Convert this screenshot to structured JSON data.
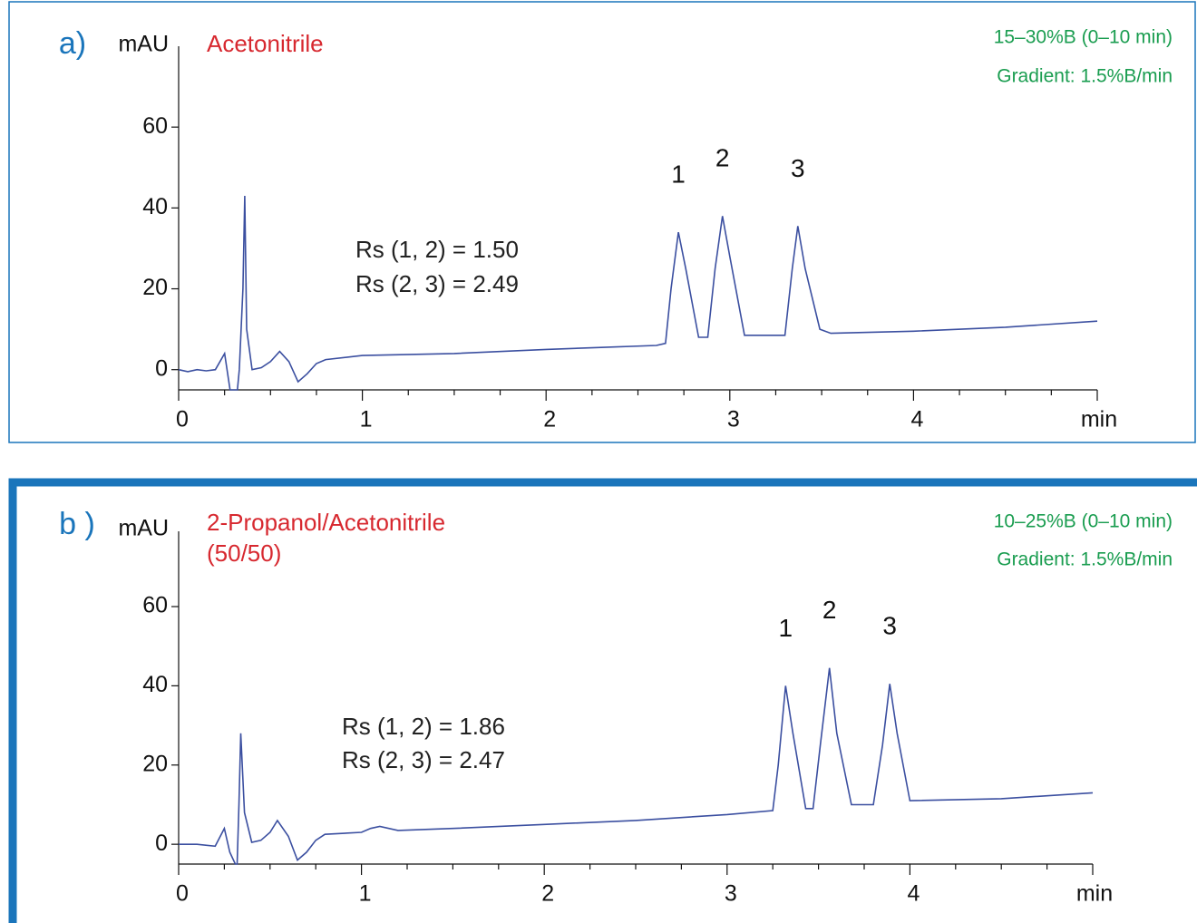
{
  "chart_data": [
    {
      "type": "line",
      "panel_label": "a)",
      "y_label": "mAU",
      "solvent": [
        "Acetonitrile"
      ],
      "conditions": [
        "15–30%B (0–10 min)",
        "Gradient: 1.5%B/min"
      ],
      "annotations": [
        "Rs (1, 2) = 1.50",
        "Rs (2, 3) = 2.49"
      ],
      "peak_labels": [
        {
          "label": "1",
          "x": 2.72
        },
        {
          "label": "2",
          "x": 2.96
        },
        {
          "label": "3",
          "x": 3.37
        }
      ],
      "color": "#3b4fa0",
      "x": [
        0,
        0.05,
        0.1,
        0.15,
        0.2,
        0.25,
        0.28,
        0.3,
        0.32,
        0.33,
        0.35,
        0.36,
        0.37,
        0.4,
        0.45,
        0.5,
        0.55,
        0.6,
        0.65,
        0.7,
        0.75,
        0.8,
        1.0,
        1.5,
        2.0,
        2.3,
        2.6,
        2.65,
        2.68,
        2.72,
        2.76,
        2.83,
        2.88,
        2.92,
        2.96,
        3.0,
        3.08,
        3.3,
        3.34,
        3.37,
        3.41,
        3.49,
        3.55,
        4.0,
        4.5,
        5.0
      ],
      "values": [
        0,
        -0.5,
        0,
        -0.3,
        0,
        4,
        -5,
        -5,
        -5,
        0,
        20,
        43,
        10,
        0,
        0.5,
        2,
        4.5,
        2,
        -3,
        -1,
        1.5,
        2.5,
        3.5,
        4,
        5,
        5.5,
        6,
        6.5,
        20,
        34,
        25,
        8,
        8,
        25,
        38,
        28,
        8.5,
        8.5,
        25,
        35.5,
        25,
        10,
        9,
        9.5,
        10.5,
        12
      ],
      "xlim": [
        0,
        5
      ],
      "ylim": [
        -5,
        80
      ],
      "xticks": [
        0,
        1,
        2,
        3,
        4,
        {
          "value": 5,
          "label": "min"
        }
      ],
      "xminorticks": [
        0.25,
        0.5,
        0.75,
        1.25,
        1.5,
        1.75,
        2.25,
        2.5,
        2.75,
        3.25,
        3.5,
        3.75,
        4.25,
        4.5,
        4.75
      ],
      "yticks": [
        0,
        20,
        40,
        60
      ]
    },
    {
      "type": "line",
      "panel_label": "b )",
      "y_label": "mAU",
      "solvent": [
        "2-Propanol/Acetonitrile",
        "(50/50)"
      ],
      "conditions": [
        "10–25%B (0–10 min)",
        "Gradient: 1.5%B/min"
      ],
      "annotations": [
        "Rs (1, 2) = 1.86",
        "Rs (2, 3) = 2.47"
      ],
      "peak_labels": [
        {
          "label": "1",
          "x": 3.32
        },
        {
          "label": "2",
          "x": 3.56
        },
        {
          "label": "3",
          "x": 3.89
        }
      ],
      "color": "#3b4fa0",
      "x": [
        0,
        0.1,
        0.2,
        0.25,
        0.28,
        0.31,
        0.32,
        0.33,
        0.34,
        0.36,
        0.4,
        0.45,
        0.5,
        0.54,
        0.6,
        0.65,
        0.7,
        0.75,
        0.8,
        1.0,
        1.05,
        1.1,
        1.2,
        1.5,
        2.0,
        2.5,
        3.0,
        3.25,
        3.28,
        3.32,
        3.36,
        3.43,
        3.47,
        3.51,
        3.56,
        3.6,
        3.68,
        3.8,
        3.85,
        3.89,
        3.93,
        4.0,
        4.5,
        5.0
      ],
      "values": [
        0,
        0,
        -0.5,
        4,
        -2,
        -5,
        -5,
        10,
        28,
        8,
        0.5,
        1,
        3,
        6,
        2,
        -4,
        -2,
        1,
        2.5,
        3,
        4,
        4.5,
        3.5,
        4,
        5,
        6,
        7.5,
        8.5,
        20,
        40,
        28,
        9,
        9,
        25,
        44.5,
        28,
        10,
        10,
        25,
        40.5,
        28,
        11,
        11.5,
        13
      ],
      "xlim": [
        0,
        5
      ],
      "ylim": [
        -5,
        79
      ],
      "xticks": [
        0,
        1,
        2,
        3,
        4,
        {
          "value": 5,
          "label": "min"
        }
      ],
      "xminorticks": [
        0.25,
        0.5,
        0.75,
        1.25,
        1.5,
        1.75,
        2.25,
        2.5,
        2.75,
        3.25,
        3.5,
        3.75,
        4.25,
        4.5,
        4.75
      ],
      "yticks": [
        0,
        20,
        40,
        60
      ]
    }
  ]
}
